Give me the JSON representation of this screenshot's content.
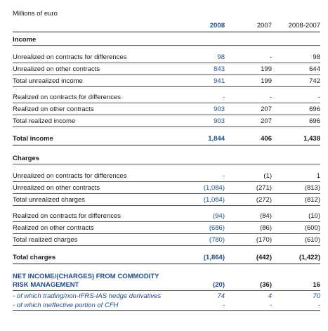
{
  "caption": "Millions of euro",
  "headers": {
    "y2008": "2008",
    "y2007": "2007",
    "diff": "2008-2007"
  },
  "sections": {
    "income": "Income",
    "charges": "Charges"
  },
  "rows": {
    "inc_unr_cfd": {
      "label": "Unrealized on contracts for differences",
      "v2008": "98",
      "v2007": "-",
      "diff": "98"
    },
    "inc_unr_oth": {
      "label": "Unrealized on other contracts",
      "v2008": "843",
      "v2007": "199",
      "diff": "644"
    },
    "inc_unr_tot": {
      "label": "Total unrealized income",
      "v2008": "941",
      "v2007": "199",
      "diff": "742"
    },
    "inc_rea_cfd": {
      "label": "Realized on contracts for differences",
      "v2008": "-",
      "v2007": "-",
      "diff": "-"
    },
    "inc_rea_oth": {
      "label": "Realized on other contracts",
      "v2008": "903",
      "v2007": "207",
      "diff": "696"
    },
    "inc_rea_tot": {
      "label": "Total realized income",
      "v2008": "903",
      "v2007": "207",
      "diff": "696"
    },
    "inc_tot": {
      "label": "Total income",
      "v2008": "1,844",
      "v2007": "406",
      "diff": "1,438"
    },
    "chg_unr_cfd": {
      "label": "Unrealized on contracts for differences",
      "v2008": "-",
      "v2007": "(1)",
      "diff": "1"
    },
    "chg_unr_oth": {
      "label": "Unrealized on other contracts",
      "v2008": "(1,084)",
      "v2007": "(271)",
      "diff": "(813)"
    },
    "chg_unr_tot": {
      "label": "Total unrealized charges",
      "v2008": "(1,084)",
      "v2007": "(272)",
      "diff": "(812)"
    },
    "chg_rea_cfd": {
      "label": "Realized on contracts for differences",
      "v2008": "(94)",
      "v2007": "(84)",
      "diff": "(10)"
    },
    "chg_rea_oth": {
      "label": "Realized on other contracts",
      "v2008": "(686)",
      "v2007": "(86)",
      "diff": "(600)"
    },
    "chg_rea_tot": {
      "label": "Total realized charges",
      "v2008": "(780)",
      "v2007": "(170)",
      "diff": "(610)"
    },
    "chg_tot": {
      "label": "Total charges",
      "v2008": "(1,864)",
      "v2007": "(442)",
      "diff": "(1,422)"
    },
    "net": {
      "label_line1": "NET INCOME/(CHARGES) FROM COMMODITY",
      "label_line2": "RISK MANAGEMENT",
      "v2008": "(20)",
      "v2007": "(36)",
      "diff": "16"
    },
    "net_trading": {
      "label": "- of which trading/non-IFRS-IAS hedge derivatives",
      "v2008": "74",
      "v2007": "4",
      "diff": "70"
    },
    "net_cfh": {
      "label": "- of which ineffective portion of CFH",
      "v2008": "-",
      "v2007": "-",
      "diff": "-"
    }
  },
  "colors": {
    "accent": "#1d4e89",
    "text": "#1a1a1a",
    "rule": "#555555"
  }
}
